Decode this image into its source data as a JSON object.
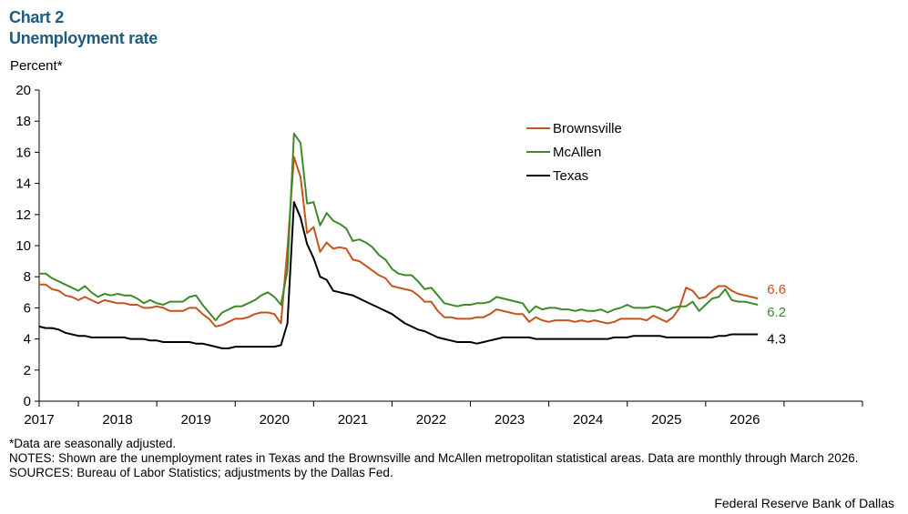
{
  "header": {
    "chart_label": "Chart 2",
    "title": "Unemployment rate"
  },
  "chart_data": {
    "type": "line",
    "title": "Unemployment rate",
    "ylabel": "Percent*",
    "xlabel": "",
    "ylim": [
      0,
      20
    ],
    "yticks": [
      "0",
      "2",
      "4",
      "6",
      "8",
      "10",
      "12",
      "14",
      "16",
      "18",
      "20"
    ],
    "xtick_labels": [
      "2017",
      "2018",
      "2019",
      "2020",
      "2021",
      "2022",
      "2023",
      "2024",
      "2025",
      "2026"
    ],
    "x_start": "2016-07",
    "x_end": "2026-03",
    "grid": false,
    "legend_position": "top-right",
    "series": [
      {
        "name": "Brownsville",
        "color": "#c5531f",
        "end_label": "6.6",
        "values": [
          7.5,
          7.5,
          7.2,
          7.1,
          6.8,
          6.7,
          6.5,
          6.7,
          6.5,
          6.3,
          6.5,
          6.4,
          6.3,
          6.3,
          6.2,
          6.2,
          6.0,
          6.0,
          6.1,
          6.0,
          5.8,
          5.8,
          5.8,
          6.0,
          6.0,
          5.6,
          5.3,
          4.8,
          4.9,
          5.1,
          5.3,
          5.3,
          5.4,
          5.6,
          5.7,
          5.7,
          5.6,
          5.0,
          9.8,
          15.7,
          14.4,
          10.8,
          11.2,
          9.6,
          10.2,
          9.8,
          9.9,
          9.8,
          9.1,
          9.0,
          8.7,
          8.4,
          8.1,
          7.9,
          7.4,
          7.3,
          7.2,
          7.1,
          6.8,
          6.4,
          6.4,
          5.8,
          5.4,
          5.4,
          5.3,
          5.3,
          5.3,
          5.4,
          5.4,
          5.6,
          5.9,
          5.8,
          5.7,
          5.6,
          5.6,
          5.1,
          5.4,
          5.2,
          5.1,
          5.2,
          5.2,
          5.2,
          5.1,
          5.2,
          5.1,
          5.2,
          5.1,
          5.0,
          5.1,
          5.3,
          5.3,
          5.3,
          5.3,
          5.2,
          5.5,
          5.3,
          5.1,
          5.4,
          6.0,
          7.3,
          7.1,
          6.6,
          6.7,
          7.1,
          7.4,
          7.4,
          7.1,
          6.9,
          6.8,
          6.7,
          6.6
        ]
      },
      {
        "name": "McAllen",
        "color": "#3e8a2b",
        "end_label": "6.2",
        "values": [
          8.2,
          8.2,
          7.9,
          7.7,
          7.5,
          7.3,
          7.1,
          7.4,
          7.0,
          6.7,
          6.9,
          6.8,
          6.9,
          6.8,
          6.8,
          6.6,
          6.3,
          6.5,
          6.3,
          6.2,
          6.4,
          6.4,
          6.4,
          6.7,
          6.8,
          6.2,
          5.7,
          5.2,
          5.7,
          5.9,
          6.1,
          6.1,
          6.3,
          6.5,
          6.8,
          7.0,
          6.7,
          6.2,
          8.4,
          17.2,
          16.6,
          12.7,
          12.8,
          11.3,
          12.1,
          11.6,
          11.4,
          11.1,
          10.3,
          10.4,
          10.2,
          9.9,
          9.4,
          9.1,
          8.5,
          8.2,
          8.1,
          8.1,
          7.7,
          7.2,
          7.3,
          6.8,
          6.3,
          6.2,
          6.1,
          6.2,
          6.2,
          6.3,
          6.3,
          6.4,
          6.7,
          6.6,
          6.5,
          6.4,
          6.3,
          5.7,
          6.1,
          5.9,
          6.0,
          6.0,
          5.9,
          5.9,
          5.8,
          5.9,
          5.8,
          5.8,
          5.9,
          5.7,
          5.9,
          6.0,
          6.2,
          6.0,
          6.0,
          6.0,
          6.1,
          6.0,
          5.8,
          6.0,
          6.1,
          6.1,
          6.4,
          5.8,
          6.2,
          6.6,
          6.7,
          7.2,
          6.5,
          6.4,
          6.4,
          6.3,
          6.2
        ]
      },
      {
        "name": "Texas",
        "color": "#000000",
        "end_label": "4.3",
        "values": [
          4.8,
          4.7,
          4.7,
          4.6,
          4.4,
          4.3,
          4.2,
          4.2,
          4.1,
          4.1,
          4.1,
          4.1,
          4.1,
          4.1,
          4.0,
          4.0,
          4.0,
          3.9,
          3.9,
          3.8,
          3.8,
          3.8,
          3.8,
          3.8,
          3.7,
          3.7,
          3.6,
          3.5,
          3.4,
          3.4,
          3.5,
          3.5,
          3.5,
          3.5,
          3.5,
          3.5,
          3.5,
          3.6,
          5.0,
          12.8,
          11.8,
          10.1,
          9.2,
          8.0,
          7.8,
          7.1,
          7.0,
          6.9,
          6.8,
          6.6,
          6.4,
          6.2,
          6.0,
          5.8,
          5.6,
          5.3,
          5.0,
          4.8,
          4.6,
          4.5,
          4.3,
          4.1,
          4.0,
          3.9,
          3.8,
          3.8,
          3.8,
          3.7,
          3.8,
          3.9,
          4.0,
          4.1,
          4.1,
          4.1,
          4.1,
          4.1,
          4.0,
          4.0,
          4.0,
          4.0,
          4.0,
          4.0,
          4.0,
          4.0,
          4.0,
          4.0,
          4.0,
          4.0,
          4.1,
          4.1,
          4.1,
          4.2,
          4.2,
          4.2,
          4.2,
          4.2,
          4.1,
          4.1,
          4.1,
          4.1,
          4.1,
          4.1,
          4.1,
          4.1,
          4.2,
          4.2,
          4.3,
          4.3,
          4.3,
          4.3,
          4.3
        ]
      }
    ]
  },
  "notes": {
    "seasonal": "*Data are seasonally adjusted.",
    "notes": "NOTES: Shown are the unemployment rates in Texas and the Brownsville and McAllen metropolitan statistical areas. Data are monthly through March 2026.",
    "sources": "SOURCES: Bureau of Labor Statistics; adjustments by the Dallas Fed."
  },
  "footer": {
    "credit": "Federal Reserve Bank of Dallas"
  }
}
